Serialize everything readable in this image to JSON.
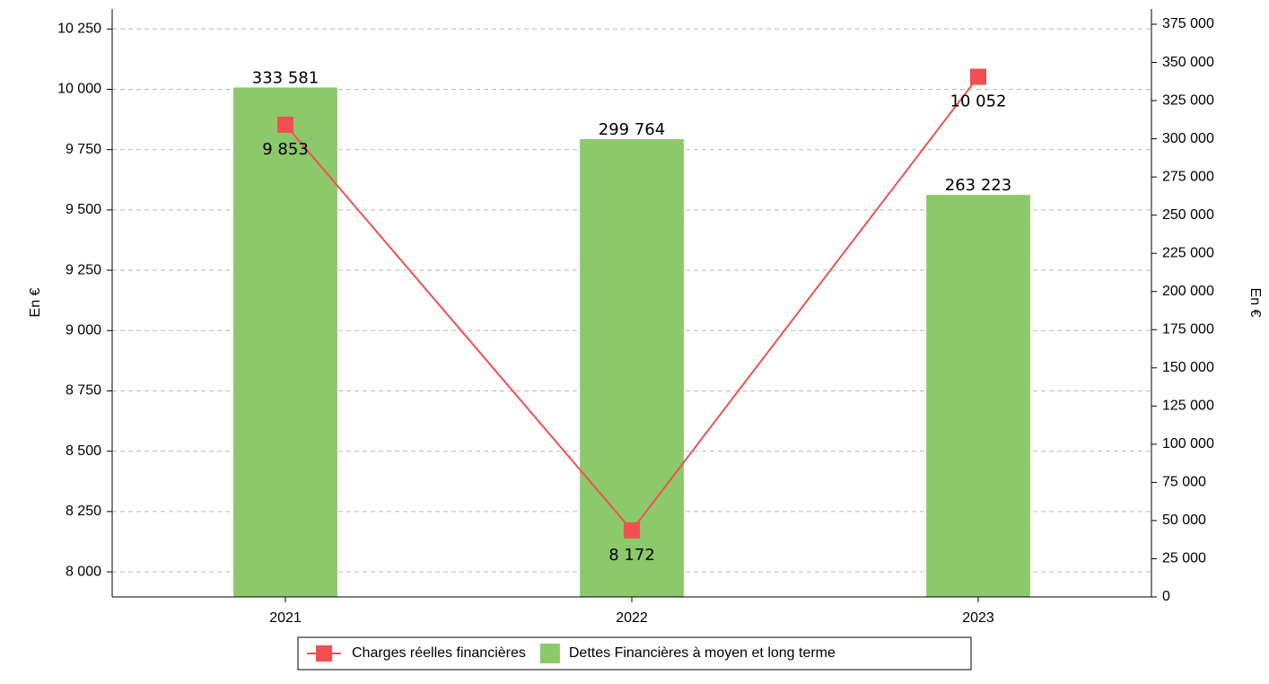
{
  "chart_data": {
    "type": "bar-line",
    "categories": [
      "2021",
      "2022",
      "2023"
    ],
    "series": [
      {
        "name": "Charges réelles financières",
        "type": "line",
        "color": "#f05050",
        "axis": "y",
        "values": [
          9853,
          8172,
          10052
        ],
        "value_labels": [
          "9 853",
          "8 172",
          "10 052"
        ]
      },
      {
        "name": "Dettes Financières à moyen et long terme",
        "type": "bar",
        "color": "#8cc96a",
        "axis": "y2",
        "values": [
          333581,
          299764,
          263223
        ],
        "value_labels": [
          "333 581",
          "299 764",
          "263 223"
        ]
      }
    ],
    "ylabel": "En €",
    "y2label": "En €",
    "ylim": [
      7896,
      10333
    ],
    "yticks": [
      {
        "value": 8000,
        "label": "8 000"
      },
      {
        "value": 8250,
        "label": "8 250"
      },
      {
        "value": 8500,
        "label": "8 500"
      },
      {
        "value": 8750,
        "label": "8 750"
      },
      {
        "value": 9000,
        "label": "9 000"
      },
      {
        "value": 9250,
        "label": "9 250"
      },
      {
        "value": 9500,
        "label": "9 500"
      },
      {
        "value": 9750,
        "label": "9 750"
      },
      {
        "value": 10000,
        "label": "10 000"
      },
      {
        "value": 10250,
        "label": "10 250"
      }
    ],
    "y2lim": [
      0,
      385000
    ],
    "y2ticks": [
      0,
      {
        "value": 25000,
        "label": "25 000"
      },
      {
        "value": 50000,
        "label": "50 000"
      },
      {
        "value": 75000,
        "label": "75 000"
      },
      {
        "value": 100000,
        "label": "100 000"
      },
      {
        "value": 125000,
        "label": "125 000"
      },
      {
        "value": 150000,
        "label": "150 000"
      },
      {
        "value": 175000,
        "label": "175 000"
      },
      {
        "value": 200000,
        "label": "200 000"
      },
      {
        "value": 225000,
        "label": "225 000"
      },
      {
        "value": 250000,
        "label": "250 000"
      },
      {
        "value": 275000,
        "label": "275 000"
      },
      {
        "value": 300000,
        "label": "300 000"
      },
      {
        "value": 325000,
        "label": "325 000"
      },
      {
        "value": 350000,
        "label": "350 000"
      },
      {
        "value": 375000,
        "label": "375 000"
      }
    ],
    "grid": true,
    "legend": "bottom"
  }
}
